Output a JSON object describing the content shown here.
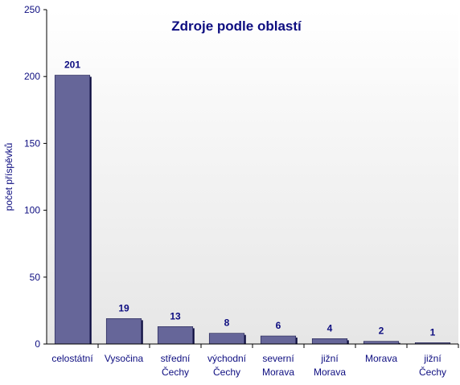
{
  "chart_data": {
    "type": "bar",
    "title": "Zdroje podle oblastí",
    "ylabel": "počet příspěvků",
    "xlabel": "",
    "ylim": [
      0,
      250
    ],
    "yticks": [
      "0",
      "50",
      "100",
      "150",
      "200",
      "250"
    ],
    "categories": [
      [
        "celostátní"
      ],
      [
        "Vysočina"
      ],
      [
        "střední",
        "Čechy"
      ],
      [
        "východní",
        "Čechy"
      ],
      [
        "severní",
        "Morava"
      ],
      [
        "jižní",
        "Morava"
      ],
      [
        "Morava"
      ],
      [
        "jižní",
        "Čechy"
      ]
    ],
    "values": [
      201,
      19,
      13,
      8,
      6,
      4,
      2,
      1
    ],
    "data_labels": [
      "201",
      "19",
      "13",
      "8",
      "6",
      "4",
      "2",
      "1"
    ],
    "grid": false,
    "legend": "none",
    "colors": {
      "bar": "#666699",
      "bar_shadow": "#0d0d40",
      "text": "#0d0d80",
      "axis": "#000000",
      "plot_bg_top": "#ffffff",
      "plot_bg_bottom": "#e6e6e6"
    }
  }
}
